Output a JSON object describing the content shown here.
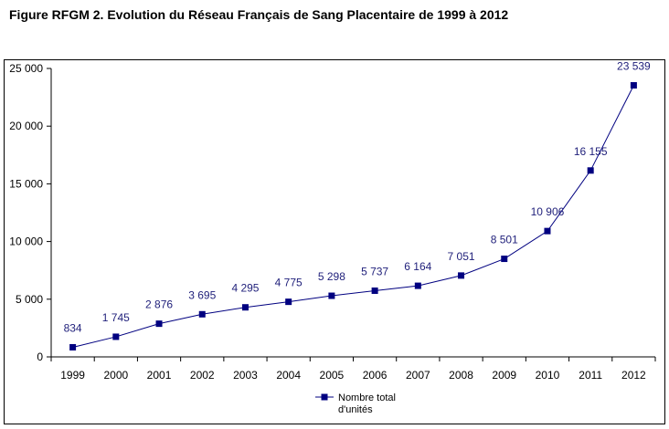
{
  "figure_title": "Figure RFGM 2. Evolution du Réseau Français de Sang Placentaire de 1999 à 2012",
  "chart_data": {
    "type": "line",
    "title": "",
    "xlabel": "",
    "ylabel": "",
    "x": [
      "1999",
      "2000",
      "2001",
      "2002",
      "2003",
      "2004",
      "2005",
      "2006",
      "2007",
      "2008",
      "2009",
      "2010",
      "2011",
      "2012"
    ],
    "series": [
      {
        "name": "Nombre total d'unités",
        "values": [
          834,
          1745,
          2876,
          3695,
          4295,
          4775,
          5298,
          5737,
          6164,
          7051,
          8501,
          10906,
          16155,
          23539
        ],
        "labels": [
          "834",
          "1 745",
          "2 876",
          "3 695",
          "4 295",
          "4 775",
          "5 298",
          "5 737",
          "6 164",
          "7 051",
          "8 501",
          "10 906",
          "16 155",
          "23 539"
        ]
      }
    ],
    "ylim": [
      0,
      25000
    ],
    "yticks": [
      0,
      5000,
      10000,
      15000,
      20000,
      25000
    ],
    "ytick_labels": [
      "0",
      "5 000",
      "10 000",
      "15 000",
      "20 000",
      "25 000"
    ],
    "grid": false,
    "legend": {
      "position": "bottom",
      "lines": [
        "Nombre total",
        "d'unités"
      ]
    },
    "colors": {
      "series": "#000080",
      "axis": "#000000",
      "label": "#1f1f7a"
    }
  }
}
